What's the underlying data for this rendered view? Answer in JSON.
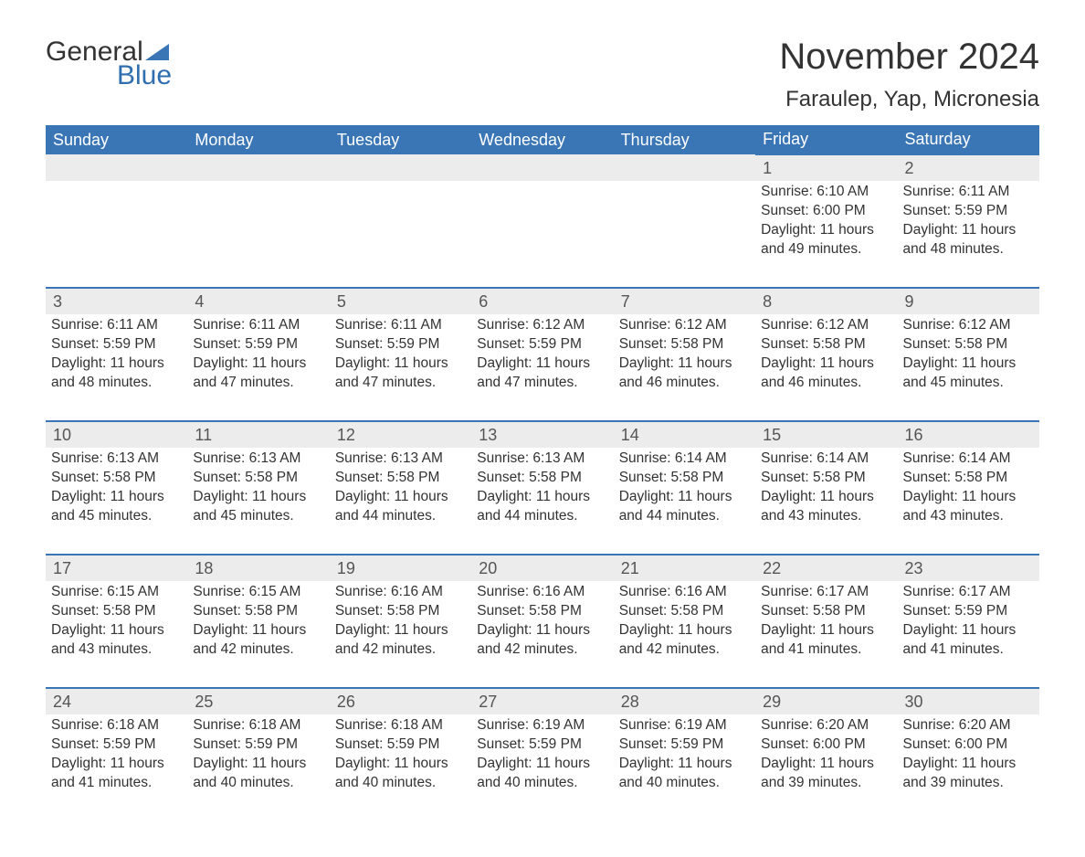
{
  "logo": {
    "text_general": "General",
    "text_blue": "Blue",
    "triangle_color": "#3a76b6"
  },
  "title": "November 2024",
  "location": "Faraulep, Yap, Micronesia",
  "colors": {
    "header_bg": "#3a76b6",
    "header_text": "#ffffff",
    "daynum_bg": "#ececec",
    "daynum_border": "#3a76b6",
    "body_text": "#333333",
    "page_bg": "#ffffff"
  },
  "typography": {
    "title_fontsize": 40,
    "location_fontsize": 24,
    "header_fontsize": 18,
    "daynum_fontsize": 18,
    "cell_fontsize": 15.5
  },
  "day_headers": [
    "Sunday",
    "Monday",
    "Tuesday",
    "Wednesday",
    "Thursday",
    "Friday",
    "Saturday"
  ],
  "weeks": [
    [
      null,
      null,
      null,
      null,
      null,
      {
        "n": "1",
        "sunrise": "6:10 AM",
        "sunset": "6:00 PM",
        "daylight": "11 hours and 49 minutes."
      },
      {
        "n": "2",
        "sunrise": "6:11 AM",
        "sunset": "5:59 PM",
        "daylight": "11 hours and 48 minutes."
      }
    ],
    [
      {
        "n": "3",
        "sunrise": "6:11 AM",
        "sunset": "5:59 PM",
        "daylight": "11 hours and 48 minutes."
      },
      {
        "n": "4",
        "sunrise": "6:11 AM",
        "sunset": "5:59 PM",
        "daylight": "11 hours and 47 minutes."
      },
      {
        "n": "5",
        "sunrise": "6:11 AM",
        "sunset": "5:59 PM",
        "daylight": "11 hours and 47 minutes."
      },
      {
        "n": "6",
        "sunrise": "6:12 AM",
        "sunset": "5:59 PM",
        "daylight": "11 hours and 47 minutes."
      },
      {
        "n": "7",
        "sunrise": "6:12 AM",
        "sunset": "5:58 PM",
        "daylight": "11 hours and 46 minutes."
      },
      {
        "n": "8",
        "sunrise": "6:12 AM",
        "sunset": "5:58 PM",
        "daylight": "11 hours and 46 minutes."
      },
      {
        "n": "9",
        "sunrise": "6:12 AM",
        "sunset": "5:58 PM",
        "daylight": "11 hours and 45 minutes."
      }
    ],
    [
      {
        "n": "10",
        "sunrise": "6:13 AM",
        "sunset": "5:58 PM",
        "daylight": "11 hours and 45 minutes."
      },
      {
        "n": "11",
        "sunrise": "6:13 AM",
        "sunset": "5:58 PM",
        "daylight": "11 hours and 45 minutes."
      },
      {
        "n": "12",
        "sunrise": "6:13 AM",
        "sunset": "5:58 PM",
        "daylight": "11 hours and 44 minutes."
      },
      {
        "n": "13",
        "sunrise": "6:13 AM",
        "sunset": "5:58 PM",
        "daylight": "11 hours and 44 minutes."
      },
      {
        "n": "14",
        "sunrise": "6:14 AM",
        "sunset": "5:58 PM",
        "daylight": "11 hours and 44 minutes."
      },
      {
        "n": "15",
        "sunrise": "6:14 AM",
        "sunset": "5:58 PM",
        "daylight": "11 hours and 43 minutes."
      },
      {
        "n": "16",
        "sunrise": "6:14 AM",
        "sunset": "5:58 PM",
        "daylight": "11 hours and 43 minutes."
      }
    ],
    [
      {
        "n": "17",
        "sunrise": "6:15 AM",
        "sunset": "5:58 PM",
        "daylight": "11 hours and 43 minutes."
      },
      {
        "n": "18",
        "sunrise": "6:15 AM",
        "sunset": "5:58 PM",
        "daylight": "11 hours and 42 minutes."
      },
      {
        "n": "19",
        "sunrise": "6:16 AM",
        "sunset": "5:58 PM",
        "daylight": "11 hours and 42 minutes."
      },
      {
        "n": "20",
        "sunrise": "6:16 AM",
        "sunset": "5:58 PM",
        "daylight": "11 hours and 42 minutes."
      },
      {
        "n": "21",
        "sunrise": "6:16 AM",
        "sunset": "5:58 PM",
        "daylight": "11 hours and 42 minutes."
      },
      {
        "n": "22",
        "sunrise": "6:17 AM",
        "sunset": "5:58 PM",
        "daylight": "11 hours and 41 minutes."
      },
      {
        "n": "23",
        "sunrise": "6:17 AM",
        "sunset": "5:59 PM",
        "daylight": "11 hours and 41 minutes."
      }
    ],
    [
      {
        "n": "24",
        "sunrise": "6:18 AM",
        "sunset": "5:59 PM",
        "daylight": "11 hours and 41 minutes."
      },
      {
        "n": "25",
        "sunrise": "6:18 AM",
        "sunset": "5:59 PM",
        "daylight": "11 hours and 40 minutes."
      },
      {
        "n": "26",
        "sunrise": "6:18 AM",
        "sunset": "5:59 PM",
        "daylight": "11 hours and 40 minutes."
      },
      {
        "n": "27",
        "sunrise": "6:19 AM",
        "sunset": "5:59 PM",
        "daylight": "11 hours and 40 minutes."
      },
      {
        "n": "28",
        "sunrise": "6:19 AM",
        "sunset": "5:59 PM",
        "daylight": "11 hours and 40 minutes."
      },
      {
        "n": "29",
        "sunrise": "6:20 AM",
        "sunset": "6:00 PM",
        "daylight": "11 hours and 39 minutes."
      },
      {
        "n": "30",
        "sunrise": "6:20 AM",
        "sunset": "6:00 PM",
        "daylight": "11 hours and 39 minutes."
      }
    ]
  ],
  "labels": {
    "sunrise": "Sunrise: ",
    "sunset": "Sunset: ",
    "daylight": "Daylight: "
  }
}
